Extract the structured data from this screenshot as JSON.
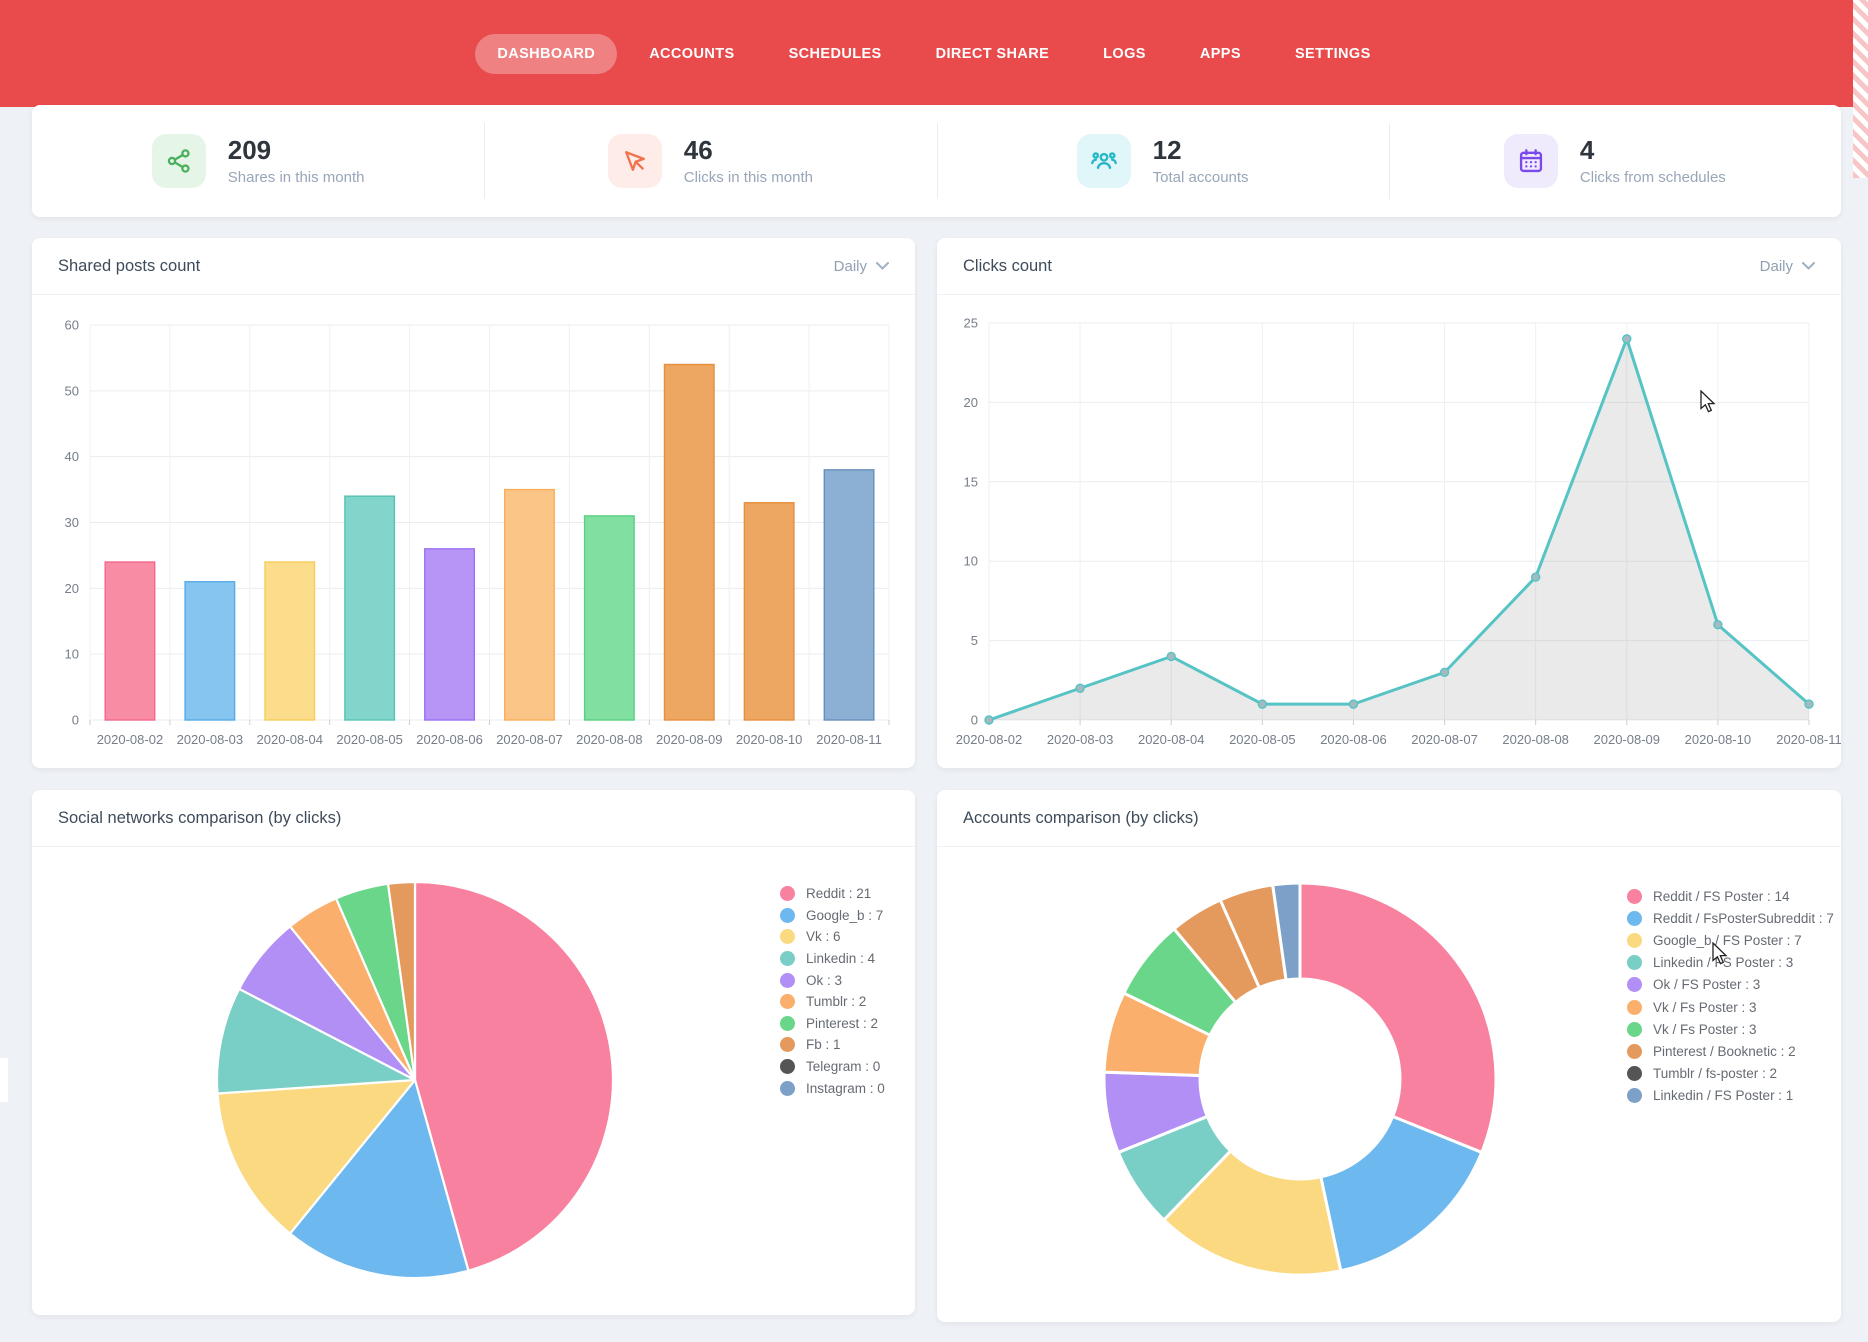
{
  "header": {
    "nav": [
      {
        "label": "DASHBOARD",
        "active": true
      },
      {
        "label": "ACCOUNTS",
        "active": false
      },
      {
        "label": "SCHEDULES",
        "active": false
      },
      {
        "label": "DIRECT SHARE",
        "active": false
      },
      {
        "label": "LOGS",
        "active": false
      },
      {
        "label": "APPS",
        "active": false
      },
      {
        "label": "SETTINGS",
        "active": false
      }
    ]
  },
  "stats": [
    {
      "icon": "share-icon",
      "value": "209",
      "label": "Shares in this month",
      "color": "#4cb15f",
      "bg": "#e5f6e8"
    },
    {
      "icon": "click-icon",
      "value": "46",
      "label": "Clicks in this month",
      "color": "#f2714e",
      "bg": "#fdece7"
    },
    {
      "icon": "users-icon",
      "value": "12",
      "label": "Total accounts",
      "color": "#27b7c9",
      "bg": "#e0f6f9"
    },
    {
      "icon": "calendar-icon",
      "value": "4",
      "label": "Clicks from schedules",
      "color": "#7a49ec",
      "bg": "#efeafc"
    }
  ],
  "cards": {
    "shared_posts": {
      "title": "Shared posts count",
      "range_label": "Daily"
    },
    "clicks": {
      "title": "Clicks count",
      "range_label": "Daily"
    },
    "social_networks": {
      "title": "Social networks comparison (by clicks)"
    },
    "accounts": {
      "title": "Accounts comparison (by clicks)"
    }
  },
  "chart_data": [
    {
      "type": "bar",
      "title": "Shared posts count",
      "categories": [
        "2020-08-02",
        "2020-08-03",
        "2020-08-04",
        "2020-08-05",
        "2020-08-06",
        "2020-08-07",
        "2020-08-08",
        "2020-08-09",
        "2020-08-10",
        "2020-08-11"
      ],
      "values": [
        24,
        21,
        24,
        34,
        26,
        35,
        31,
        54,
        33,
        38
      ],
      "bar_colors": [
        "#f78ca4",
        "#85c5f0",
        "#fbdd8b",
        "#82d5cb",
        "#b795f7",
        "#fbc588",
        "#82dfa2",
        "#eda763",
        "#eda763",
        "#8cafd4"
      ],
      "bar_borders": [
        "#f3688c",
        "#56abe8",
        "#f8cc57",
        "#57c2b4",
        "#9d6ff4",
        "#f9ae57",
        "#58d07f",
        "#e68f3c",
        "#e68f3c",
        "#688fbc"
      ],
      "xlabel": "",
      "ylabel": "",
      "ylim": [
        0,
        60
      ],
      "ytick_step": 10,
      "grid": true,
      "legend_position": "none"
    },
    {
      "type": "area",
      "title": "Clicks count",
      "categories": [
        "2020-08-02",
        "2020-08-03",
        "2020-08-04",
        "2020-08-05",
        "2020-08-06",
        "2020-08-07",
        "2020-08-08",
        "2020-08-09",
        "2020-08-10",
        "2020-08-11"
      ],
      "values": [
        0,
        2,
        4,
        1,
        1,
        3,
        9,
        24,
        6,
        1
      ],
      "line_color": "#56c3c5",
      "fill_color": "rgba(130,130,130,0.17)",
      "point_fill": "#a3bbc0",
      "xlabel": "",
      "ylabel": "",
      "ylim": [
        0,
        25
      ],
      "ytick_step": 5,
      "grid": true,
      "legend_position": "none"
    },
    {
      "type": "pie",
      "title": "Social networks comparison (by clicks)",
      "labels": [
        "Reddit",
        "Google_b",
        "Vk",
        "Linkedin",
        "Ok",
        "Tumblr",
        "Pinterest",
        "Fb",
        "Telegram",
        "Instagram"
      ],
      "values": [
        21,
        7,
        6,
        4,
        3,
        2,
        2,
        1,
        0,
        0
      ],
      "colors": [
        "#f8819f",
        "#6db8ee",
        "#fbd981",
        "#79cec5",
        "#b28ff5",
        "#fab06c",
        "#69d689",
        "#e59a5d",
        "#555555",
        "#7ca0c8"
      ],
      "legend_position": "right",
      "legend_format": "label : value"
    },
    {
      "type": "pie",
      "donut": true,
      "inner_radius_ratio": 0.51,
      "title": "Accounts comparison (by clicks)",
      "labels": [
        "Reddit / FS Poster",
        "Reddit / FsPosterSubreddit",
        "Google_b / FS Poster",
        "Linkedin / FS Poster",
        "Ok / FS Poster",
        "Vk / Fs Poster",
        "Vk / Fs Poster",
        "Pinterest / Booknetic",
        "Tumblr / fs-poster",
        "Linkedin / FS Poster"
      ],
      "values": [
        14,
        7,
        7,
        3,
        3,
        3,
        3,
        2,
        2,
        1
      ],
      "slice_colors": [
        "#f8819f",
        "#6db8ee",
        "#fbd981",
        "#79cec5",
        "#b28ff5",
        "#fab06c",
        "#69d689",
        "#e59a5d",
        "#e59a5d",
        "#7ca0c8"
      ],
      "legend_colors": [
        "#f8819f",
        "#6db8ee",
        "#fbd981",
        "#79cec5",
        "#b28ff5",
        "#fab06c",
        "#69d689",
        "#e59a5d",
        "#555555",
        "#7ca0c8"
      ],
      "legend_position": "right",
      "legend_format": "label : value"
    }
  ]
}
